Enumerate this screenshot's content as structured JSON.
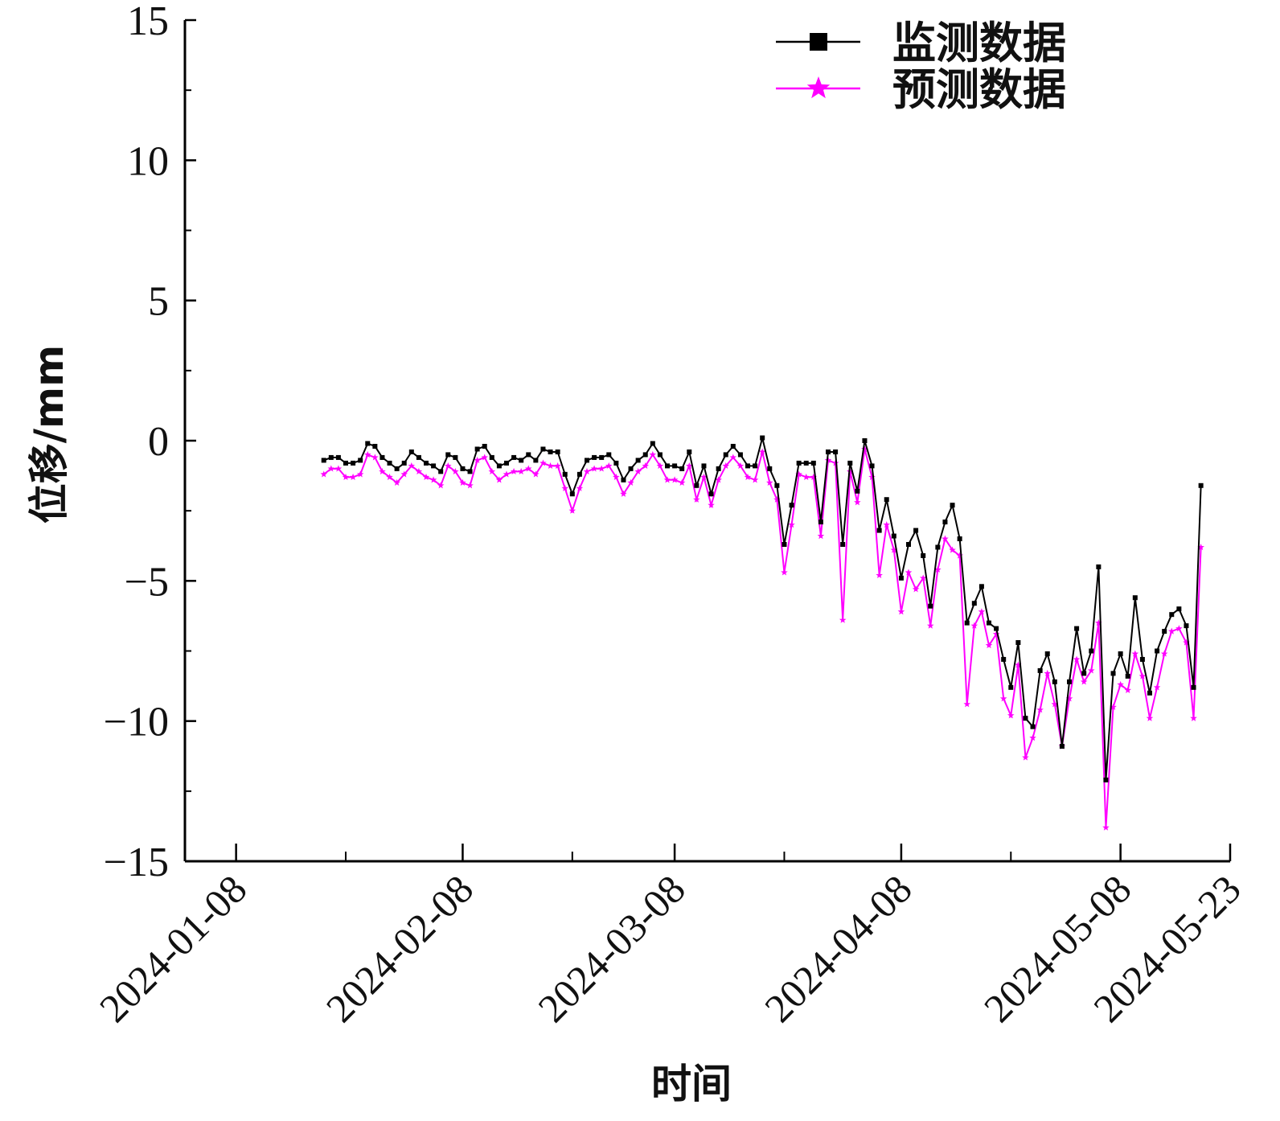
{
  "chart_data": {
    "type": "line",
    "xlabel": "时间",
    "ylabel": "位移/mm",
    "x_tick_labels": [
      "2024-01-08",
      "2024-02-08",
      "2024-03-08",
      "2024-04-08",
      "2024-05-08",
      "2024-05-23"
    ],
    "x_ticks": [
      "2024-01-08",
      "2024-02-08",
      "2024-03-08",
      "2024-04-08",
      "2024-05-08",
      "2024-05-23"
    ],
    "x_minor_ticks": [
      "2024-01-23",
      "2024-02-23",
      "2024-03-23",
      "2024-04-23"
    ],
    "xlim": [
      "2024-01-01",
      "2024-05-23"
    ],
    "y_ticks": [
      15,
      10,
      5,
      0,
      -5,
      -10,
      -15
    ],
    "ylim": [
      -15,
      15
    ],
    "legend_position": "top-right",
    "colors": {
      "monitor": "#000000",
      "predict": "#ff00ff"
    },
    "series": [
      {
        "name": "监测数据",
        "marker": "square",
        "color": "#000000",
        "points": [
          [
            "2024-01-20",
            -0.7
          ],
          [
            "2024-01-21",
            -0.6
          ],
          [
            "2024-01-22",
            -0.6
          ],
          [
            "2024-01-23",
            -0.8
          ],
          [
            "2024-01-24",
            -0.8
          ],
          [
            "2024-01-25",
            -0.7
          ],
          [
            "2024-01-26",
            -0.1
          ],
          [
            "2024-01-27",
            -0.2
          ],
          [
            "2024-01-28",
            -0.6
          ],
          [
            "2024-01-29",
            -0.8
          ],
          [
            "2024-01-30",
            -1.0
          ],
          [
            "2024-01-31",
            -0.8
          ],
          [
            "2024-02-01",
            -0.4
          ],
          [
            "2024-02-02",
            -0.6
          ],
          [
            "2024-02-03",
            -0.8
          ],
          [
            "2024-02-04",
            -0.9
          ],
          [
            "2024-02-05",
            -1.1
          ],
          [
            "2024-02-06",
            -0.5
          ],
          [
            "2024-02-07",
            -0.6
          ],
          [
            "2024-02-08",
            -1.0
          ],
          [
            "2024-02-09",
            -1.1
          ],
          [
            "2024-02-10",
            -0.3
          ],
          [
            "2024-02-11",
            -0.2
          ],
          [
            "2024-02-12",
            -0.6
          ],
          [
            "2024-02-13",
            -0.9
          ],
          [
            "2024-02-14",
            -0.8
          ],
          [
            "2024-02-15",
            -0.6
          ],
          [
            "2024-02-16",
            -0.7
          ],
          [
            "2024-02-17",
            -0.5
          ],
          [
            "2024-02-18",
            -0.7
          ],
          [
            "2024-02-19",
            -0.3
          ],
          [
            "2024-02-20",
            -0.4
          ],
          [
            "2024-02-21",
            -0.4
          ],
          [
            "2024-02-22",
            -1.2
          ],
          [
            "2024-02-23",
            -1.9
          ],
          [
            "2024-02-24",
            -1.2
          ],
          [
            "2024-02-25",
            -0.7
          ],
          [
            "2024-02-26",
            -0.6
          ],
          [
            "2024-02-27",
            -0.6
          ],
          [
            "2024-02-28",
            -0.5
          ],
          [
            "2024-02-29",
            -0.8
          ],
          [
            "2024-03-01",
            -1.4
          ],
          [
            "2024-03-02",
            -1.0
          ],
          [
            "2024-03-03",
            -0.7
          ],
          [
            "2024-03-04",
            -0.5
          ],
          [
            "2024-03-05",
            -0.1
          ],
          [
            "2024-03-06",
            -0.5
          ],
          [
            "2024-03-07",
            -0.9
          ],
          [
            "2024-03-08",
            -0.9
          ],
          [
            "2024-03-09",
            -1.0
          ],
          [
            "2024-03-10",
            -0.4
          ],
          [
            "2024-03-11",
            -1.6
          ],
          [
            "2024-03-12",
            -0.9
          ],
          [
            "2024-03-13",
            -1.9
          ],
          [
            "2024-03-14",
            -1.0
          ],
          [
            "2024-03-15",
            -0.5
          ],
          [
            "2024-03-16",
            -0.2
          ],
          [
            "2024-03-17",
            -0.5
          ],
          [
            "2024-03-18",
            -0.9
          ],
          [
            "2024-03-19",
            -0.9
          ],
          [
            "2024-03-20",
            0.1
          ],
          [
            "2024-03-21",
            -1.0
          ],
          [
            "2024-03-22",
            -1.6
          ],
          [
            "2024-03-23",
            -3.7
          ],
          [
            "2024-03-24",
            -2.3
          ],
          [
            "2024-03-25",
            -0.8
          ],
          [
            "2024-03-26",
            -0.8
          ],
          [
            "2024-03-27",
            -0.8
          ],
          [
            "2024-03-28",
            -2.9
          ],
          [
            "2024-03-29",
            -0.4
          ],
          [
            "2024-03-30",
            -0.4
          ],
          [
            "2024-03-31",
            -3.7
          ],
          [
            "2024-04-01",
            -0.8
          ],
          [
            "2024-04-02",
            -1.8
          ],
          [
            "2024-04-03",
            0.0
          ],
          [
            "2024-04-04",
            -0.9
          ],
          [
            "2024-04-05",
            -3.2
          ],
          [
            "2024-04-06",
            -2.1
          ],
          [
            "2024-04-07",
            -3.4
          ],
          [
            "2024-04-08",
            -4.9
          ],
          [
            "2024-04-09",
            -3.7
          ],
          [
            "2024-04-10",
            -3.2
          ],
          [
            "2024-04-11",
            -4.1
          ],
          [
            "2024-04-12",
            -5.9
          ],
          [
            "2024-04-13",
            -3.8
          ],
          [
            "2024-04-14",
            -2.9
          ],
          [
            "2024-04-15",
            -2.3
          ],
          [
            "2024-04-16",
            -3.5
          ],
          [
            "2024-04-17",
            -6.5
          ],
          [
            "2024-04-18",
            -5.8
          ],
          [
            "2024-04-19",
            -5.2
          ],
          [
            "2024-04-20",
            -6.5
          ],
          [
            "2024-04-21",
            -6.7
          ],
          [
            "2024-04-22",
            -7.8
          ],
          [
            "2024-04-23",
            -8.8
          ],
          [
            "2024-04-24",
            -7.2
          ],
          [
            "2024-04-25",
            -9.9
          ],
          [
            "2024-04-26",
            -10.2
          ],
          [
            "2024-04-27",
            -8.2
          ],
          [
            "2024-04-28",
            -7.6
          ],
          [
            "2024-04-29",
            -8.6
          ],
          [
            "2024-04-30",
            -10.9
          ],
          [
            "2024-05-01",
            -8.6
          ],
          [
            "2024-05-02",
            -6.7
          ],
          [
            "2024-05-03",
            -8.3
          ],
          [
            "2024-05-04",
            -7.5
          ],
          [
            "2024-05-05",
            -4.5
          ],
          [
            "2024-05-06",
            -12.1
          ],
          [
            "2024-05-07",
            -8.3
          ],
          [
            "2024-05-08",
            -7.6
          ],
          [
            "2024-05-09",
            -8.4
          ],
          [
            "2024-05-10",
            -5.6
          ],
          [
            "2024-05-11",
            -7.8
          ],
          [
            "2024-05-12",
            -9.0
          ],
          [
            "2024-05-13",
            -7.5
          ],
          [
            "2024-05-14",
            -6.8
          ],
          [
            "2024-05-15",
            -6.2
          ],
          [
            "2024-05-16",
            -6.0
          ],
          [
            "2024-05-17",
            -6.6
          ],
          [
            "2024-05-18",
            -8.8
          ],
          [
            "2024-05-19",
            -1.6
          ]
        ]
      },
      {
        "name": "预测数据",
        "marker": "star",
        "color": "#ff00ff",
        "points": [
          [
            "2024-01-20",
            -1.2
          ],
          [
            "2024-01-21",
            -1.0
          ],
          [
            "2024-01-22",
            -1.0
          ],
          [
            "2024-01-23",
            -1.3
          ],
          [
            "2024-01-24",
            -1.3
          ],
          [
            "2024-01-25",
            -1.2
          ],
          [
            "2024-01-26",
            -0.5
          ],
          [
            "2024-01-27",
            -0.6
          ],
          [
            "2024-01-28",
            -1.1
          ],
          [
            "2024-01-29",
            -1.3
          ],
          [
            "2024-01-30",
            -1.5
          ],
          [
            "2024-01-31",
            -1.2
          ],
          [
            "2024-02-01",
            -0.9
          ],
          [
            "2024-02-02",
            -1.1
          ],
          [
            "2024-02-03",
            -1.3
          ],
          [
            "2024-02-04",
            -1.4
          ],
          [
            "2024-02-05",
            -1.6
          ],
          [
            "2024-02-06",
            -0.9
          ],
          [
            "2024-02-07",
            -1.1
          ],
          [
            "2024-02-08",
            -1.5
          ],
          [
            "2024-02-09",
            -1.6
          ],
          [
            "2024-02-10",
            -0.7
          ],
          [
            "2024-02-11",
            -0.6
          ],
          [
            "2024-02-12",
            -1.1
          ],
          [
            "2024-02-13",
            -1.4
          ],
          [
            "2024-02-14",
            -1.2
          ],
          [
            "2024-02-15",
            -1.1
          ],
          [
            "2024-02-16",
            -1.1
          ],
          [
            "2024-02-17",
            -1.0
          ],
          [
            "2024-02-18",
            -1.2
          ],
          [
            "2024-02-19",
            -0.8
          ],
          [
            "2024-02-20",
            -0.9
          ],
          [
            "2024-02-21",
            -0.9
          ],
          [
            "2024-02-22",
            -1.7
          ],
          [
            "2024-02-23",
            -2.5
          ],
          [
            "2024-02-24",
            -1.7
          ],
          [
            "2024-02-25",
            -1.1
          ],
          [
            "2024-02-26",
            -1.0
          ],
          [
            "2024-02-27",
            -1.0
          ],
          [
            "2024-02-28",
            -0.9
          ],
          [
            "2024-02-29",
            -1.3
          ],
          [
            "2024-03-01",
            -1.9
          ],
          [
            "2024-03-02",
            -1.5
          ],
          [
            "2024-03-03",
            -1.1
          ],
          [
            "2024-03-04",
            -0.9
          ],
          [
            "2024-03-05",
            -0.5
          ],
          [
            "2024-03-06",
            -0.9
          ],
          [
            "2024-03-07",
            -1.4
          ],
          [
            "2024-03-08",
            -1.4
          ],
          [
            "2024-03-09",
            -1.5
          ],
          [
            "2024-03-10",
            -0.9
          ],
          [
            "2024-03-11",
            -2.1
          ],
          [
            "2024-03-12",
            -1.3
          ],
          [
            "2024-03-13",
            -2.3
          ],
          [
            "2024-03-14",
            -1.4
          ],
          [
            "2024-03-15",
            -0.9
          ],
          [
            "2024-03-16",
            -0.6
          ],
          [
            "2024-03-17",
            -0.9
          ],
          [
            "2024-03-18",
            -1.3
          ],
          [
            "2024-03-19",
            -1.4
          ],
          [
            "2024-03-20",
            -0.4
          ],
          [
            "2024-03-21",
            -1.5
          ],
          [
            "2024-03-22",
            -2.1
          ],
          [
            "2024-03-23",
            -4.7
          ],
          [
            "2024-03-24",
            -3.0
          ],
          [
            "2024-03-25",
            -1.2
          ],
          [
            "2024-03-26",
            -1.3
          ],
          [
            "2024-03-27",
            -1.3
          ],
          [
            "2024-03-28",
            -3.4
          ],
          [
            "2024-03-29",
            -0.7
          ],
          [
            "2024-03-30",
            -0.8
          ],
          [
            "2024-03-31",
            -6.4
          ],
          [
            "2024-04-01",
            -1.1
          ],
          [
            "2024-04-02",
            -2.2
          ],
          [
            "2024-04-03",
            -0.3
          ],
          [
            "2024-04-04",
            -1.3
          ],
          [
            "2024-04-05",
            -4.8
          ],
          [
            "2024-04-06",
            -3.0
          ],
          [
            "2024-04-07",
            -3.9
          ],
          [
            "2024-04-08",
            -6.1
          ],
          [
            "2024-04-09",
            -4.7
          ],
          [
            "2024-04-10",
            -5.3
          ],
          [
            "2024-04-11",
            -4.9
          ],
          [
            "2024-04-12",
            -6.6
          ],
          [
            "2024-04-13",
            -4.6
          ],
          [
            "2024-04-14",
            -3.5
          ],
          [
            "2024-04-15",
            -3.9
          ],
          [
            "2024-04-16",
            -4.1
          ],
          [
            "2024-04-17",
            -9.4
          ],
          [
            "2024-04-18",
            -6.6
          ],
          [
            "2024-04-19",
            -6.1
          ],
          [
            "2024-04-20",
            -7.3
          ],
          [
            "2024-04-21",
            -6.9
          ],
          [
            "2024-04-22",
            -9.2
          ],
          [
            "2024-04-23",
            -9.8
          ],
          [
            "2024-04-24",
            -8.0
          ],
          [
            "2024-04-25",
            -11.3
          ],
          [
            "2024-04-26",
            -10.6
          ],
          [
            "2024-04-27",
            -9.6
          ],
          [
            "2024-04-28",
            -8.3
          ],
          [
            "2024-04-29",
            -9.4
          ],
          [
            "2024-04-30",
            -10.9
          ],
          [
            "2024-05-01",
            -9.2
          ],
          [
            "2024-05-02",
            -7.8
          ],
          [
            "2024-05-03",
            -8.6
          ],
          [
            "2024-05-04",
            -8.2
          ],
          [
            "2024-05-05",
            -6.5
          ],
          [
            "2024-05-06",
            -13.8
          ],
          [
            "2024-05-07",
            -9.5
          ],
          [
            "2024-05-08",
            -8.7
          ],
          [
            "2024-05-09",
            -8.9
          ],
          [
            "2024-05-10",
            -7.6
          ],
          [
            "2024-05-11",
            -8.4
          ],
          [
            "2024-05-12",
            -9.9
          ],
          [
            "2024-05-13",
            -8.8
          ],
          [
            "2024-05-14",
            -7.6
          ],
          [
            "2024-05-15",
            -6.8
          ],
          [
            "2024-05-16",
            -6.7
          ],
          [
            "2024-05-17",
            -7.2
          ],
          [
            "2024-05-18",
            -9.9
          ],
          [
            "2024-05-19",
            -3.8
          ]
        ]
      }
    ]
  }
}
